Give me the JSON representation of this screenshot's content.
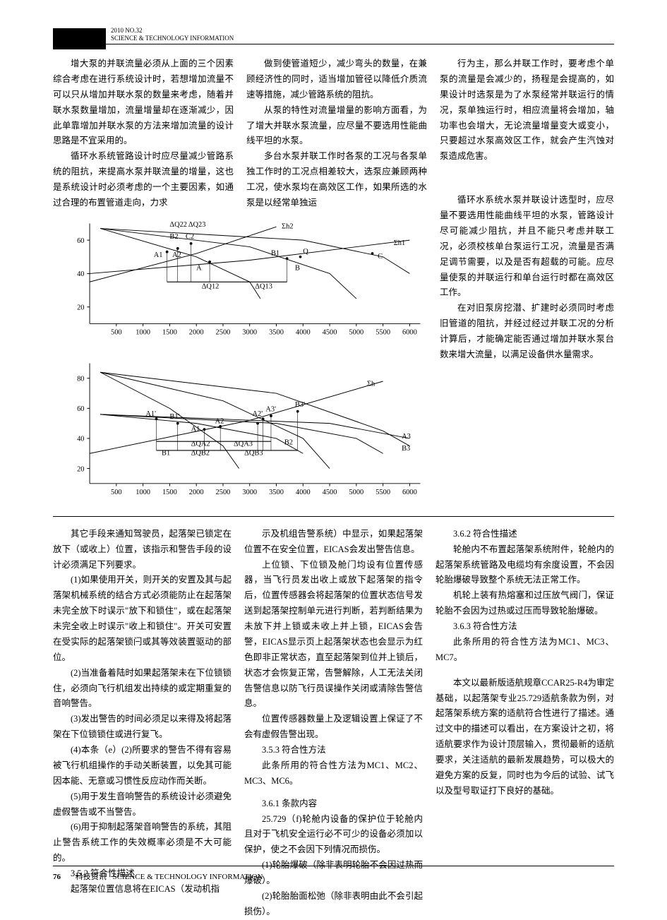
{
  "header": {
    "issue": "2010  NO.32",
    "journal_en": "SCIENCE & TECHNOLOGY INFORMATION"
  },
  "upper": {
    "col1": {
      "p1": "增大泵的并联流量必须从上面的三个因素综合考虑在进行系统设计时，若想增加流量不可以只从增加并联水泵的数量来考虑，随着并联水泵数量增加，流量增量却在逐渐减少，因此单靠增加并联水泵的方法来增加流量的设计思路是不宜采用的。",
      "p2": "循环水系统管路设计时应尽量减少管路系统的阻抗，来提高水泵并联流量的增量，这也是系统设计时必须考虑的一个主要因素，如通过合理的布置管道走向，力求"
    },
    "col2": {
      "p1": "做到使管道短少，减少弯头的数量，在兼顾经济性的同时，适当增加管径以降低介质流速等措施，减少管路系统的阻抗。",
      "p2": "从泵的特性对流量增量的影响方面看，为了增大并联水泵流量，应尽量不要选用性能曲线平坦的水泵。",
      "p3": "多台水泵并联工作时各泵的工况与各泵单独工作时的工况点相差较大，选泵应兼顾两种工况，使水泵均在高效区工作，如果所选的水泵是以经常单独运"
    },
    "col3": {
      "p1": "行为主，那么并联工作时，要考虑个单泵的流量是会减少的，扬程是会提高的，如果设计时选泵是为了水泵经常并联运行的情况，泵单独运行时，相应流量将会增加，轴功率也会增大，无论流量增量变大或变小，只要超过水泵高效区工作，就会产生汽蚀对泵造成危害。",
      "p2": "循环水系统水泵并联设计选型时，应尽量不要选用性能曲线平坦的水泵，管路设计尽可能减少阻抗，并且不能只考虑并联工况，必须校核单台泵运行工况，流量是否满足调节需要，以及是否有超载的可能。应尽量使泵的并联运行和单台运行时都在高效区工作。",
      "p3": "在对旧泵房挖潜、扩建时必须同时考虑旧管道的阻抗，并经过经过并联工况的分析计算后，才能确定能否通过增加并联水泵台数来增大流量，以满足设备供水量需求。"
    }
  },
  "chart1": {
    "xticks": [
      500,
      1000,
      1500,
      2000,
      2500,
      3000,
      3500,
      4000,
      4500,
      5000,
      5500,
      6000
    ],
    "yticks": [
      20,
      40,
      60
    ],
    "ylim": [
      10,
      70
    ],
    "xlim": [
      0,
      6200
    ],
    "labels": {
      "dQ22": "ΔQ22",
      "dQ23": "ΔQ23",
      "B2": "B2",
      "C2": "C2",
      "A1": "A1",
      "A2": "A2",
      "B1": "B1",
      "dQ12": "ΔQ12",
      "dQ13": "ΔQ13",
      "Sh2": "Σh2",
      "Sh1": "Σh1",
      "A": "A",
      "B": "B",
      "C": "C",
      "Q": "Q"
    },
    "stroke": "#000",
    "stroke_w": 1,
    "fontsize": 11
  },
  "chart2": {
    "xticks": [
      500,
      1000,
      1500,
      2000,
      2500,
      3000,
      3500,
      4000,
      4500,
      5000,
      5500,
      6000
    ],
    "yticks": [
      20,
      40,
      60,
      80
    ],
    "ylim": [
      10,
      90
    ],
    "xlim": [
      0,
      6200
    ],
    "labels": {
      "A1p": "A1'",
      "B1p": "B1'",
      "A1": "A1",
      "A2": "A2",
      "A2p": "A2'",
      "A3p": "A3'",
      "B1": "B1",
      "B2": "B2",
      "B3p": "B3'",
      "dQA2": "ΔQA2",
      "dQA3": "ΔQA3",
      "dQB2": "ΔQB2",
      "dQB3": "ΔQB3",
      "Sh": "Σh",
      "A3": "A3",
      "B3": "B3"
    },
    "stroke": "#000",
    "stroke_w": 1,
    "fontsize": 11
  },
  "lower": {
    "col1": {
      "p1": "其它手段来通知驾驶员，起落架已锁定在放下（或收上）位置，该指示和警告手段的设计必须满足下列要求。",
      "p2": "(1)如果使用开关，则开关的安置及其与起落架机械系统的结合方式必须能防止在起落架未完全放下时误示\"放下和锁住\"，或在起落架未完全收上时误示\"收上和锁住\"。开关可安置在受实际的起落架锁闩或其等效装置驱动的部位。",
      "p3": "(2)当准备着陆时如果起落架未在下位锁锁住，必须向飞行机组发出持续的或定期重复的音响警告。",
      "p4": "(3)发出警告的时间必须足以来得及将起落架在下位锁锁住或进行复飞。",
      "p5": "(4)本条（e）(2)所要求的警告不得有容易被飞行机组操作的手动关断装置，以免其可能因本能、无意或习惯性反应动作而关断。",
      "p6": "(5)用于发生音响警告的系统设计必须避免虚假警告或不当警告。",
      "p7": "(6)用于抑制起落架音响警告的系统，其阻止警告系统工作的失效概率必须是不大可能的。",
      "s1": "3.5.2 符合性描述",
      "p8": "起落架位置信息将在EICAS（发动机指"
    },
    "col2": {
      "p1": "示及机组告警系统）中显示，如果起落架位置不在安全位置，EICAS会发出警告信息。",
      "p2": "上位锁、下位锁及舱门均设有位置传感器，当飞行员发出收上或放下起落架的指令后，位置传感器会将起落架的位置状态信号发送到起落架控制单元进行判断，若判断结果为未放下并上锁或未收上并上锁，EICAS会告警，EICAS显示页上起落架状态也会显示为红色即非正常状态，直至起落架到位并上锁后，状态才会恢复正常，告警解除，人工无法关闭告警信息以防飞行员误操作关闭或清除告警信息。",
      "p3": "位置传感器数量上及逻辑设置上保证了不会有虚假告警出现。",
      "s1": "3.5.3 符合性方法",
      "p4": "此条所用的符合性方法为MC1、MC2、MC3、MC6。",
      "s2": "3.6.1 条款内容",
      "p5": "25.729（f)轮舱内设备的保护位于轮舱内且对于飞机安全运行必不可少的设备必须加以保护，使之不会因下列情况而损伤。",
      "p6": "(1)轮胎爆破（除非表明轮胎不会因过热而爆破）。",
      "p7": "(2)轮胎胎面松弛（除非表明由此不会引起损伤）。"
    },
    "col3": {
      "s1": "3.6.2 符合性描述",
      "p1": "轮舱内不布置起落架系统附件，轮舱内的起落架系统管路及电缆均有余度设置，不会因轮胎爆破导致整个系统无法正常工作。",
      "p2": "机轮上装有热熔塞和过压放气阀门，保证轮胎不会因为过热或过压而导致轮胎爆破。",
      "s2": "3.6.3 符合性方法",
      "p3": "此条所用的符合性方法为MC1、MC3、MC7。",
      "p4": "本文以最新版适航规章CCAR25-R4为审定基础，以起落架专业25.729适航条款为例，对起落架系统方案的适航符合性进行了描述。通过文中的描述可以看出，在方案设计之初，将适航要求作为设计顶层输入，贯彻最新的适航要求，关注适航的最新发展趋势，可以极大的避免方案的反复，同时也为今后的试验、试飞以及型号取证打下良好的基础。"
    }
  },
  "footer": {
    "page_no": "76",
    "journal_cn": "科技资讯",
    "journal_en": "SCIENCE & TECHNOLOGY INFORMATION"
  }
}
